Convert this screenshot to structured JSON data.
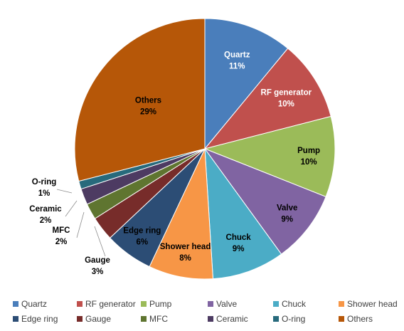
{
  "chart_data": {
    "type": "pie",
    "title": "",
    "slices": [
      {
        "label": "Quartz",
        "percent_label": "11%",
        "value": 11,
        "color": "#4a7ebb",
        "label_color": "#ffffff"
      },
      {
        "label": "RF generator",
        "percent_label": "10%",
        "value": 10,
        "color": "#c0504d",
        "label_color": "#ffffff"
      },
      {
        "label": "Pump",
        "percent_label": "10%",
        "value": 10,
        "color": "#9bbb59",
        "label_color": "#000000"
      },
      {
        "label": "Valve",
        "percent_label": "9%",
        "value": 9,
        "color": "#8064a2",
        "label_color": "#000000"
      },
      {
        "label": "Chuck",
        "percent_label": "9%",
        "value": 9,
        "color": "#4bacc6",
        "label_color": "#000000"
      },
      {
        "label": "Shower head",
        "percent_label": "8%",
        "value": 8,
        "color": "#f79646",
        "label_color": "#000000"
      },
      {
        "label": "Edge ring",
        "percent_label": "6%",
        "value": 6,
        "color": "#2c4d75",
        "label_color": "#000000"
      },
      {
        "label": "Gauge",
        "percent_label": "3%",
        "value": 3,
        "color": "#772c2a",
        "label_color": "#000000"
      },
      {
        "label": "MFC",
        "percent_label": "2%",
        "value": 2,
        "color": "#5f7530",
        "label_color": "#000000"
      },
      {
        "label": "Ceramic",
        "percent_label": "2%",
        "value": 2,
        "color": "#4d3b62",
        "label_color": "#000000"
      },
      {
        "label": "O-ring",
        "percent_label": "1%",
        "value": 1,
        "color": "#276a7c",
        "label_color": "#000000"
      },
      {
        "label": "Others",
        "percent_label": "29%",
        "value": 29,
        "color": "#b65708",
        "label_color": "#000000"
      }
    ],
    "legend_position": "bottom"
  }
}
